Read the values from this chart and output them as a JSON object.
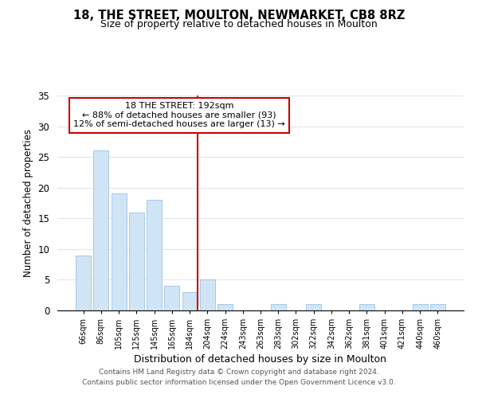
{
  "title": "18, THE STREET, MOULTON, NEWMARKET, CB8 8RZ",
  "subtitle": "Size of property relative to detached houses in Moulton",
  "xlabel": "Distribution of detached houses by size in Moulton",
  "ylabel": "Number of detached properties",
  "bar_labels": [
    "66sqm",
    "86sqm",
    "105sqm",
    "125sqm",
    "145sqm",
    "165sqm",
    "184sqm",
    "204sqm",
    "224sqm",
    "243sqm",
    "263sqm",
    "283sqm",
    "302sqm",
    "322sqm",
    "342sqm",
    "362sqm",
    "381sqm",
    "401sqm",
    "421sqm",
    "440sqm",
    "460sqm"
  ],
  "bar_values": [
    9,
    26,
    19,
    16,
    18,
    4,
    3,
    5,
    1,
    0,
    0,
    1,
    0,
    1,
    0,
    0,
    1,
    0,
    0,
    1,
    1
  ],
  "bar_color": "#cfe5f5",
  "bar_edge_color": "#a8c8e8",
  "vline_x_index": 6,
  "vline_color": "#cc0000",
  "ylim": [
    0,
    35
  ],
  "yticks": [
    0,
    5,
    10,
    15,
    20,
    25,
    30,
    35
  ],
  "annotation_title": "18 THE STREET: 192sqm",
  "annotation_line1": "← 88% of detached houses are smaller (93)",
  "annotation_line2": "12% of semi-detached houses are larger (13) →",
  "annotation_box_color": "#ffffff",
  "annotation_border_color": "#cc0000",
  "footer_line1": "Contains HM Land Registry data © Crown copyright and database right 2024.",
  "footer_line2": "Contains public sector information licensed under the Open Government Licence v3.0.",
  "background_color": "#ffffff",
  "grid_color": "#dde8f0"
}
